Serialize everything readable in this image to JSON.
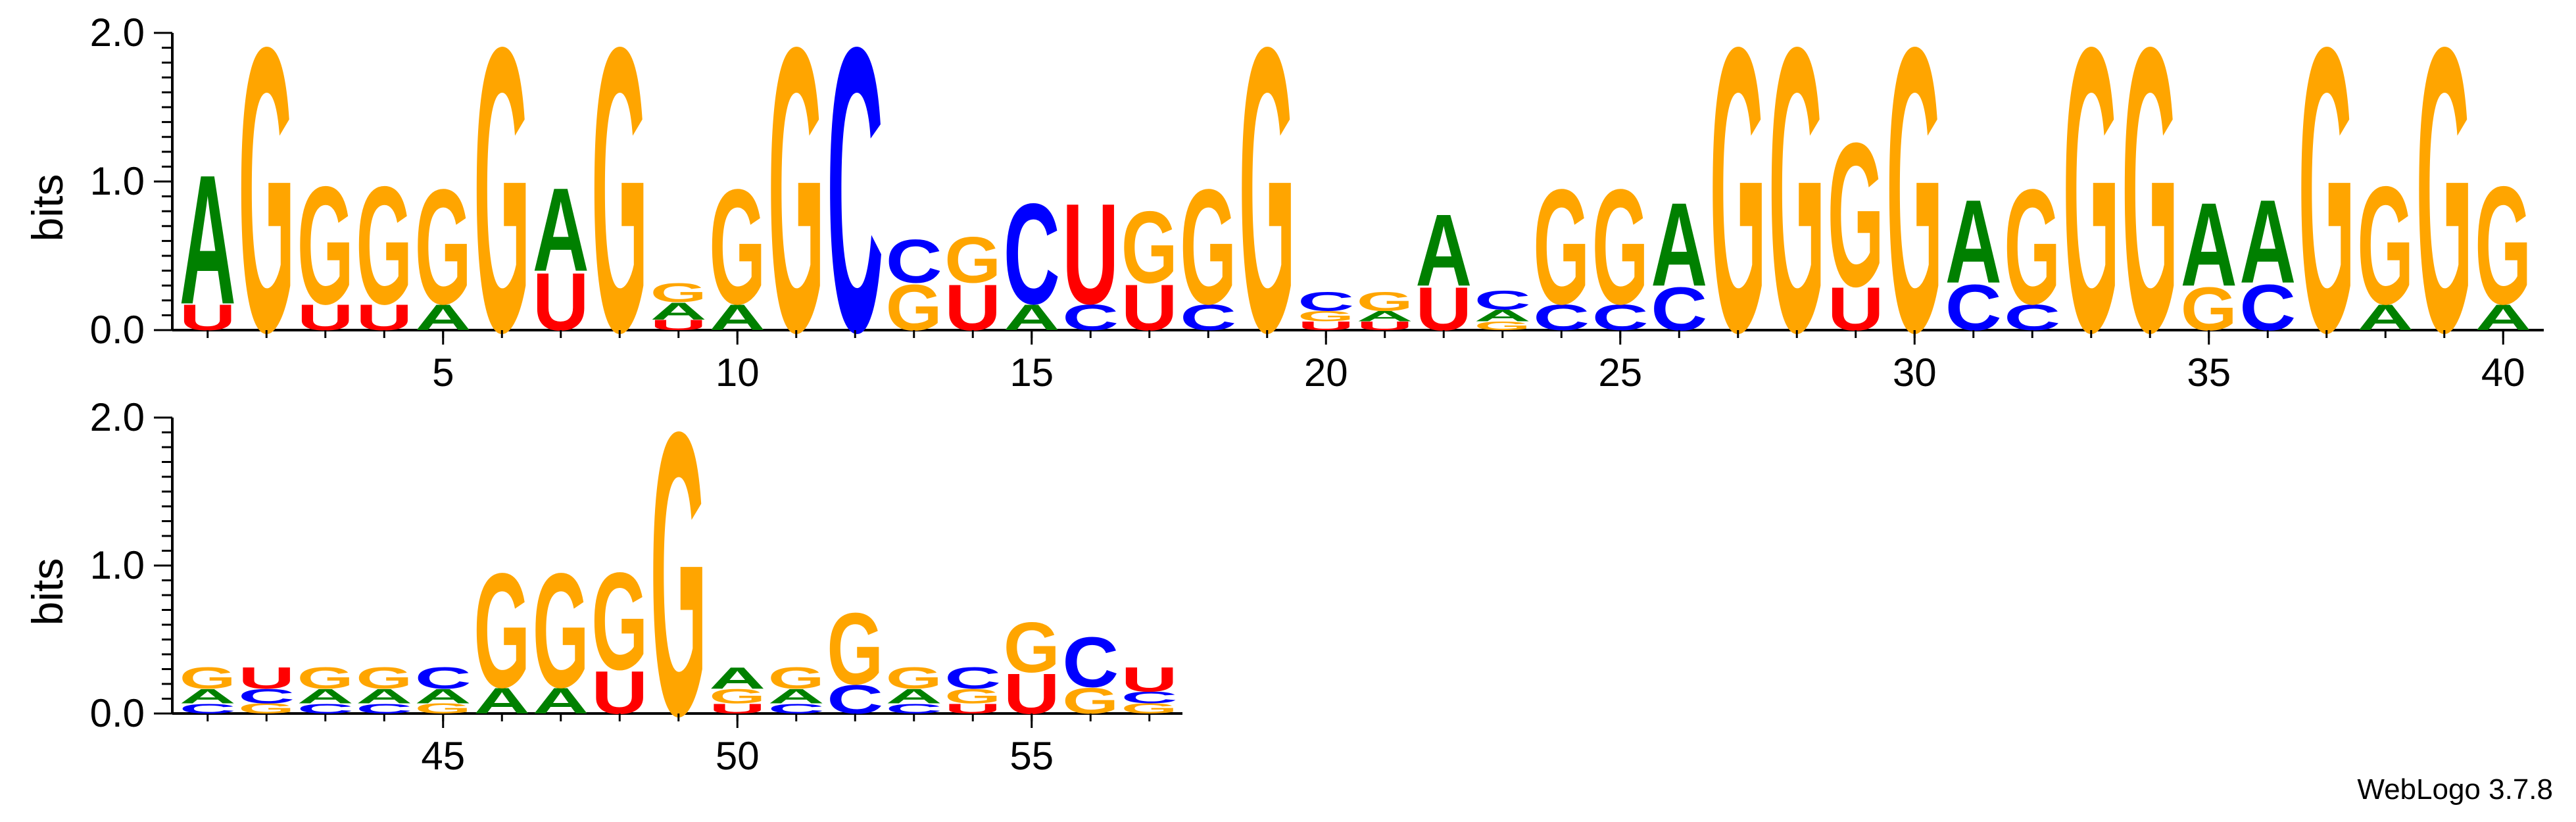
{
  "chart_data": {
    "type": "sequence-logo",
    "ylabel": "bits",
    "ylim": [
      0,
      2.0
    ],
    "y_ticks": [
      "0.0",
      "1.0",
      "2.0"
    ],
    "colors": {
      "A": "#008000",
      "C": "#0000ff",
      "G": "#ffa500",
      "U": "#ff0000"
    },
    "rows": [
      {
        "x_ticks": [
          "5",
          "10",
          "15",
          "20",
          "25",
          "30",
          "35",
          "40"
        ],
        "positions": [
          {
            "pos": 1,
            "stack": [
              [
                "U",
                0.18
              ],
              [
                "A",
                0.9
              ]
            ]
          },
          {
            "pos": 2,
            "stack": [
              [
                "G",
                1.98
              ]
            ]
          },
          {
            "pos": 3,
            "stack": [
              [
                "U",
                0.18
              ],
              [
                "G",
                0.82
              ]
            ]
          },
          {
            "pos": 4,
            "stack": [
              [
                "U",
                0.18
              ],
              [
                "G",
                0.82
              ]
            ]
          },
          {
            "pos": 5,
            "stack": [
              [
                "A",
                0.18
              ],
              [
                "G",
                0.8
              ]
            ]
          },
          {
            "pos": 6,
            "stack": [
              [
                "G",
                1.98
              ]
            ]
          },
          {
            "pos": 7,
            "stack": [
              [
                "U",
                0.4
              ],
              [
                "A",
                0.58
              ]
            ]
          },
          {
            "pos": 8,
            "stack": [
              [
                "G",
                1.98
              ]
            ]
          },
          {
            "pos": 9,
            "stack": [
              [
                "U",
                0.07
              ],
              [
                "A",
                0.12
              ],
              [
                "G",
                0.13
              ]
            ]
          },
          {
            "pos": 10,
            "stack": [
              [
                "A",
                0.18
              ],
              [
                "G",
                0.8
              ]
            ]
          },
          {
            "pos": 11,
            "stack": [
              [
                "G",
                1.98
              ]
            ]
          },
          {
            "pos": 12,
            "stack": [
              [
                "C",
                1.98
              ]
            ]
          },
          {
            "pos": 13,
            "stack": [
              [
                "G",
                0.32
              ],
              [
                "C",
                0.3
              ]
            ]
          },
          {
            "pos": 14,
            "stack": [
              [
                "U",
                0.32
              ],
              [
                "G",
                0.32
              ]
            ]
          },
          {
            "pos": 15,
            "stack": [
              [
                "A",
                0.18
              ],
              [
                "C",
                0.7
              ]
            ]
          },
          {
            "pos": 16,
            "stack": [
              [
                "C",
                0.18
              ],
              [
                "U",
                0.7
              ]
            ]
          },
          {
            "pos": 17,
            "stack": [
              [
                "U",
                0.32
              ],
              [
                "G",
                0.5
              ]
            ]
          },
          {
            "pos": 18,
            "stack": [
              [
                "C",
                0.18
              ],
              [
                "G",
                0.8
              ]
            ]
          },
          {
            "pos": 19,
            "stack": [
              [
                "G",
                1.98
              ]
            ]
          },
          {
            "pos": 20,
            "stack": [
              [
                "U",
                0.06
              ],
              [
                "G",
                0.07
              ],
              [
                "C",
                0.13
              ]
            ]
          },
          {
            "pos": 21,
            "stack": [
              [
                "U",
                0.06
              ],
              [
                "A",
                0.07
              ],
              [
                "G",
                0.13
              ]
            ]
          },
          {
            "pos": 22,
            "stack": [
              [
                "U",
                0.3
              ],
              [
                "A",
                0.5
              ]
            ]
          },
          {
            "pos": 23,
            "stack": [
              [
                "G",
                0.06
              ],
              [
                "A",
                0.08
              ],
              [
                "C",
                0.13
              ]
            ]
          },
          {
            "pos": 24,
            "stack": [
              [
                "C",
                0.18
              ],
              [
                "G",
                0.8
              ]
            ]
          },
          {
            "pos": 25,
            "stack": [
              [
                "C",
                0.18
              ],
              [
                "G",
                0.8
              ]
            ]
          },
          {
            "pos": 26,
            "stack": [
              [
                "C",
                0.3
              ],
              [
                "A",
                0.58
              ]
            ]
          },
          {
            "pos": 27,
            "stack": [
              [
                "G",
                1.98
              ]
            ]
          },
          {
            "pos": 28,
            "stack": [
              [
                "G",
                1.98
              ]
            ]
          },
          {
            "pos": 29,
            "stack": [
              [
                "U",
                0.3
              ],
              [
                "G",
                1.0
              ]
            ]
          },
          {
            "pos": 30,
            "stack": [
              [
                "G",
                1.98
              ]
            ]
          },
          {
            "pos": 31,
            "stack": [
              [
                "C",
                0.32
              ],
              [
                "A",
                0.58
              ]
            ]
          },
          {
            "pos": 32,
            "stack": [
              [
                "C",
                0.18
              ],
              [
                "G",
                0.8
              ]
            ]
          },
          {
            "pos": 33,
            "stack": [
              [
                "G",
                1.98
              ]
            ]
          },
          {
            "pos": 34,
            "stack": [
              [
                "G",
                1.98
              ]
            ]
          },
          {
            "pos": 35,
            "stack": [
              [
                "G",
                0.3
              ],
              [
                "A",
                0.58
              ]
            ]
          },
          {
            "pos": 36,
            "stack": [
              [
                "C",
                0.32
              ],
              [
                "A",
                0.58
              ]
            ]
          },
          {
            "pos": 37,
            "stack": [
              [
                "G",
                1.98
              ]
            ]
          },
          {
            "pos": 38,
            "stack": [
              [
                "A",
                0.18
              ],
              [
                "G",
                0.82
              ]
            ]
          },
          {
            "pos": 39,
            "stack": [
              [
                "G",
                1.98
              ]
            ]
          },
          {
            "pos": 40,
            "stack": [
              [
                "A",
                0.18
              ],
              [
                "G",
                0.82
              ]
            ]
          }
        ]
      },
      {
        "x_ticks": [
          "45",
          "50",
          "55"
        ],
        "positions": [
          {
            "pos": 41,
            "stack": [
              [
                "C",
                0.07
              ],
              [
                "A",
                0.1
              ],
              [
                "G",
                0.15
              ]
            ]
          },
          {
            "pos": 42,
            "stack": [
              [
                "G",
                0.07
              ],
              [
                "C",
                0.1
              ],
              [
                "U",
                0.15
              ]
            ]
          },
          {
            "pos": 43,
            "stack": [
              [
                "C",
                0.07
              ],
              [
                "A",
                0.1
              ],
              [
                "G",
                0.15
              ]
            ]
          },
          {
            "pos": 44,
            "stack": [
              [
                "C",
                0.07
              ],
              [
                "A",
                0.1
              ],
              [
                "G",
                0.15
              ]
            ]
          },
          {
            "pos": 45,
            "stack": [
              [
                "G",
                0.07
              ],
              [
                "A",
                0.1
              ],
              [
                "C",
                0.15
              ]
            ]
          },
          {
            "pos": 46,
            "stack": [
              [
                "A",
                0.18
              ],
              [
                "G",
                0.8
              ]
            ]
          },
          {
            "pos": 47,
            "stack": [
              [
                "A",
                0.18
              ],
              [
                "G",
                0.8
              ]
            ]
          },
          {
            "pos": 48,
            "stack": [
              [
                "U",
                0.3
              ],
              [
                "G",
                0.68
              ]
            ]
          },
          {
            "pos": 49,
            "stack": [
              [
                "G",
                1.98
              ]
            ]
          },
          {
            "pos": 50,
            "stack": [
              [
                "U",
                0.07
              ],
              [
                "G",
                0.1
              ],
              [
                "A",
                0.15
              ]
            ]
          },
          {
            "pos": 51,
            "stack": [
              [
                "C",
                0.07
              ],
              [
                "A",
                0.1
              ],
              [
                "G",
                0.15
              ]
            ]
          },
          {
            "pos": 52,
            "stack": [
              [
                "C",
                0.2
              ],
              [
                "G",
                0.5
              ]
            ]
          },
          {
            "pos": 53,
            "stack": [
              [
                "C",
                0.07
              ],
              [
                "A",
                0.1
              ],
              [
                "G",
                0.15
              ]
            ]
          },
          {
            "pos": 54,
            "stack": [
              [
                "U",
                0.07
              ],
              [
                "G",
                0.1
              ],
              [
                "C",
                0.15
              ]
            ]
          },
          {
            "pos": 55,
            "stack": [
              [
                "U",
                0.28
              ],
              [
                "G",
                0.35
              ]
            ]
          },
          {
            "pos": 56,
            "stack": [
              [
                "G",
                0.18
              ],
              [
                "C",
                0.35
              ]
            ]
          },
          {
            "pos": 57,
            "stack": [
              [
                "G",
                0.07
              ],
              [
                "C",
                0.08
              ],
              [
                "U",
                0.17
              ]
            ]
          }
        ]
      }
    ]
  },
  "footer": {
    "credit": "WebLogo 3.7.8"
  }
}
